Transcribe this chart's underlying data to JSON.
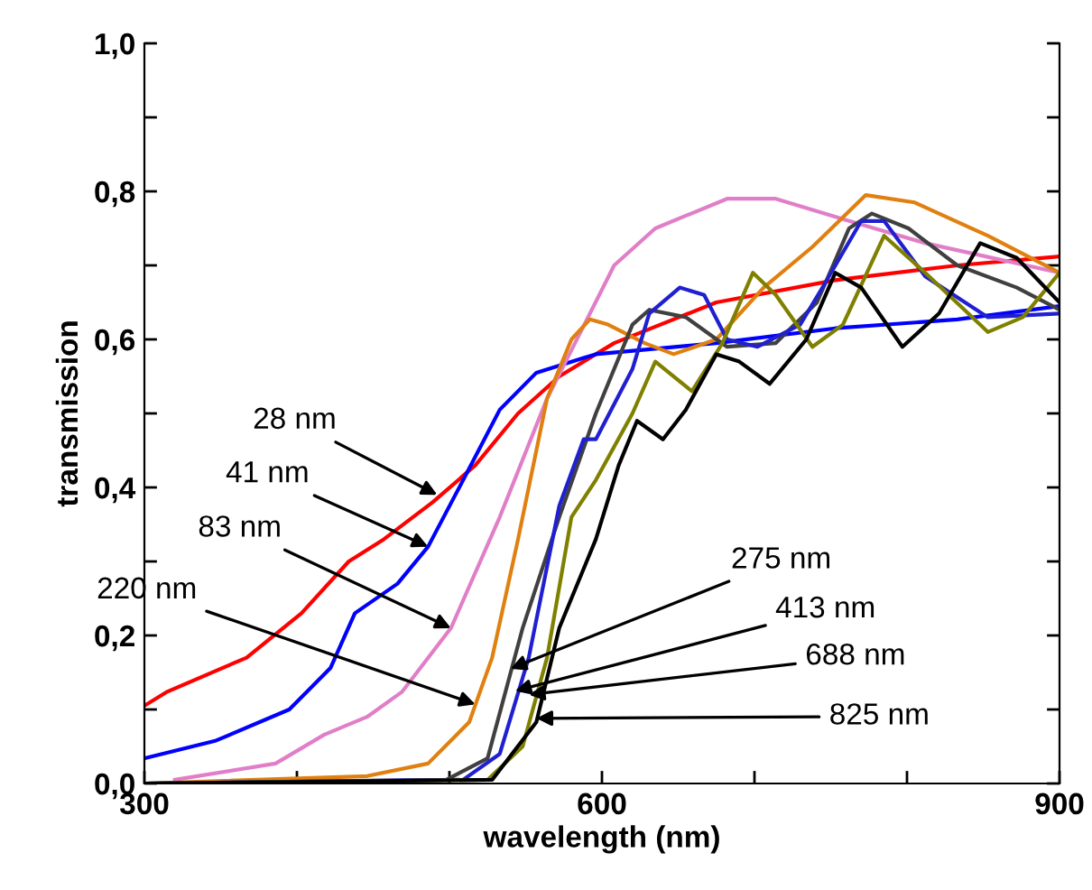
{
  "chart_data": {
    "type": "line",
    "xlabel": "wavelength (nm)",
    "ylabel": "transmission",
    "xlim": [
      300,
      900
    ],
    "ylim": [
      0,
      1
    ],
    "xticks": [
      300,
      {
        "value": 400,
        "label": null
      },
      {
        "value": 500,
        "label": null
      },
      600,
      {
        "value": 700,
        "label": null
      },
      {
        "value": 800,
        "label": null
      },
      900
    ],
    "yticks": [
      {
        "value": 0,
        "label": "0,0"
      },
      {
        "value": 0.1,
        "label": null
      },
      {
        "value": 0.2,
        "label": "0,2"
      },
      {
        "value": 0.3,
        "label": null
      },
      {
        "value": 0.4,
        "label": "0,4"
      },
      {
        "value": 0.5,
        "label": null
      },
      {
        "value": 0.6,
        "label": "0,6"
      },
      {
        "value": 0.7,
        "label": null
      },
      {
        "value": 0.8,
        "label": "0,8"
      },
      {
        "value": 0.9,
        "label": null
      },
      {
        "value": 1,
        "label": "1,0"
      }
    ],
    "grid": false,
    "marker": "none",
    "line_style": "solid",
    "series": [
      {
        "color": "#ff0000",
        "x": [
          300,
          315,
          367,
          403,
          434,
          457,
          489,
          517,
          545,
          572,
          596,
          608,
          675,
          753,
          833,
          900
        ],
        "values": [
          0.105,
          0.124,
          0.17,
          0.23,
          0.3,
          0.33,
          0.38,
          0.43,
          0.5,
          0.55,
          0.58,
          0.595,
          0.65,
          0.68,
          0.7,
          0.712
        ]
      },
      {
        "color": "#0000ff",
        "x": [
          300,
          347,
          395,
          422,
          438,
          466,
          486,
          509,
          533,
          557,
          588,
          596,
          675,
          753,
          833,
          900
        ],
        "values": [
          0.034,
          0.058,
          0.1,
          0.156,
          0.23,
          0.27,
          0.32,
          0.41,
          0.505,
          0.555,
          0.575,
          0.58,
          0.595,
          0.615,
          0.627,
          0.645
        ]
      },
      {
        "color": "#e07fc8",
        "x": [
          320,
          386,
          418,
          446,
          469,
          501,
          533,
          564,
          608,
          635,
          682,
          714,
          762,
          812,
          900
        ],
        "values": [
          0.005,
          0.027,
          0.066,
          0.09,
          0.124,
          0.21,
          0.36,
          0.52,
          0.7,
          0.75,
          0.79,
          0.79,
          0.76,
          0.73,
          0.69
        ]
      },
      {
        "color": "#e08010",
        "x": [
          300,
          446,
          486,
          513,
          528,
          545,
          564,
          580,
          592,
          604,
          628,
          647,
          675,
          706,
          738,
          773,
          805,
          853,
          900
        ],
        "values": [
          0,
          0.01,
          0.027,
          0.083,
          0.17,
          0.33,
          0.52,
          0.6,
          0.627,
          0.62,
          0.595,
          0.58,
          0.6,
          0.67,
          0.725,
          0.795,
          0.785,
          0.74,
          0.69
        ]
      },
      {
        "color": "#404040",
        "x": [
          300,
          498,
          525,
          548,
          572,
          596,
          620,
          631,
          655,
          682,
          714,
          741,
          762,
          777,
          801,
          833,
          872,
          900
        ],
        "values": [
          0,
          0.005,
          0.034,
          0.21,
          0.36,
          0.5,
          0.62,
          0.64,
          0.63,
          0.59,
          0.595,
          0.65,
          0.75,
          0.77,
          0.75,
          0.7,
          0.67,
          0.64
        ]
      },
      {
        "color": "#2020d0",
        "x": [
          300,
          509,
          533,
          552,
          572,
          588,
          596,
          620,
          631,
          651,
          667,
          682,
          702,
          730,
          746,
          770,
          785,
          812,
          853,
          900
        ],
        "values": [
          0,
          0.005,
          0.04,
          0.17,
          0.375,
          0.465,
          0.465,
          0.56,
          0.635,
          0.67,
          0.66,
          0.6,
          0.59,
          0.62,
          0.675,
          0.76,
          0.76,
          0.685,
          0.63,
          0.635
        ]
      },
      {
        "color": "#808000",
        "x": [
          300,
          525,
          548,
          564,
          580,
          596,
          620,
          635,
          659,
          679,
          699,
          714,
          738,
          758,
          785,
          812,
          853,
          876,
          900
        ],
        "values": [
          0,
          0.005,
          0.05,
          0.17,
          0.36,
          0.41,
          0.5,
          0.57,
          0.53,
          0.595,
          0.69,
          0.66,
          0.59,
          0.62,
          0.74,
          0.69,
          0.61,
          0.63,
          0.69
        ]
      },
      {
        "color": "#000000",
        "x": [
          300,
          528,
          557,
          572,
          592,
          596,
          611,
          623,
          640,
          655,
          675,
          690,
          710,
          734,
          753,
          770,
          797,
          821,
          848,
          872,
          900
        ],
        "values": [
          0,
          0.005,
          0.083,
          0.21,
          0.31,
          0.33,
          0.43,
          0.49,
          0.465,
          0.505,
          0.58,
          0.57,
          0.54,
          0.6,
          0.69,
          0.67,
          0.59,
          0.635,
          0.73,
          0.71,
          0.65
        ]
      }
    ],
    "annotations": [
      {
        "text": "28 nm",
        "x": 492,
        "y": 0.39
      },
      {
        "text": "41 nm",
        "x": 486,
        "y": 0.32
      },
      {
        "text": "83 nm",
        "x": 501,
        "y": 0.21
      },
      {
        "text": "220 nm",
        "x": 517,
        "y": 0.107
      },
      {
        "text": "275 nm",
        "x": 540,
        "y": 0.155
      },
      {
        "text": "413 nm",
        "x": 543,
        "y": 0.125
      },
      {
        "text": "688 nm",
        "x": 552,
        "y": 0.12
      },
      {
        "text": "825 nm",
        "x": 557,
        "y": 0.088
      }
    ]
  }
}
